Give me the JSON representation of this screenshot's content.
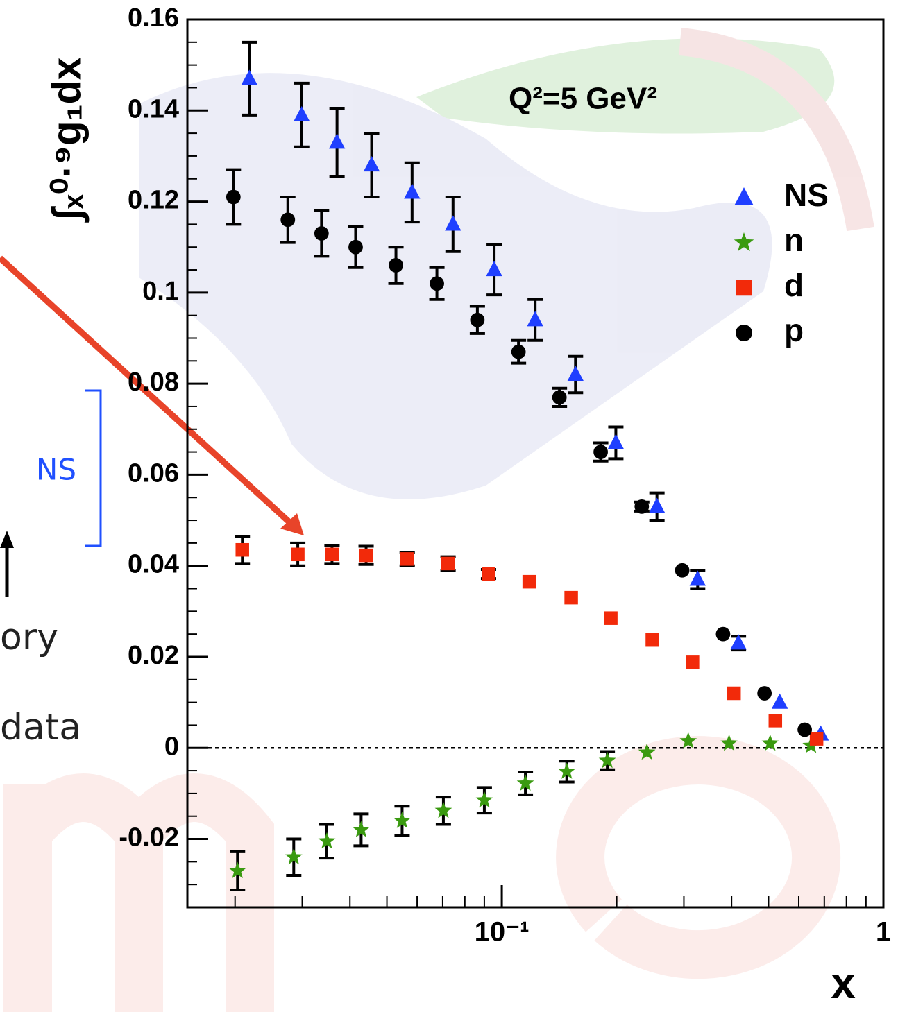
{
  "chart_data": {
    "type": "scatter",
    "annotation": "Q²=5 GeV²",
    "x_label": "x",
    "y_label": "∫ₓ⁰·⁹g₁dx",
    "side_texts": [
      "NS",
      "ory",
      "data"
    ],
    "log_x": true,
    "xlim": [
      0.015,
      1
    ],
    "xticks": [
      {
        "value": 0.1,
        "label": "10⁻¹"
      },
      1
    ],
    "ylim": [
      -0.035,
      0.16
    ],
    "yticks": [
      0.16,
      0.14,
      0.12,
      0.1,
      0.08,
      0.06,
      0.04,
      0.02,
      0,
      -0.02
    ],
    "legend": "top-right",
    "series": [
      {
        "name": "NS",
        "color": "#1f3fff",
        "marker": "triangle",
        "x": [
          0.0218,
          0.0299,
          0.037,
          0.0456,
          0.0582,
          0.0745,
          0.0955,
          0.1223,
          0.156,
          0.199,
          0.255,
          0.326,
          0.417,
          0.535,
          0.685
        ],
        "values": [
          0.147,
          0.139,
          0.133,
          0.128,
          0.122,
          0.115,
          0.105,
          0.094,
          0.082,
          0.067,
          0.053,
          0.037,
          0.023,
          0.01,
          0.003
        ],
        "errors": [
          0.008,
          0.007,
          0.0075,
          0.007,
          0.0065,
          0.006,
          0.0055,
          0.0045,
          0.004,
          0.0035,
          0.003,
          0.002,
          0.0015,
          null,
          null
        ]
      },
      {
        "name": "n",
        "color": "#3a9a10",
        "marker": "star",
        "x": [
          0.0203,
          0.0285,
          0.0348,
          0.0428,
          0.0548,
          0.0703,
          0.09,
          0.1153,
          0.148,
          0.189,
          0.24,
          0.308,
          0.394,
          0.505,
          0.646
        ],
        "values": [
          -0.027,
          -0.024,
          -0.0205,
          -0.018,
          -0.016,
          -0.0138,
          -0.0115,
          -0.0078,
          -0.0052,
          -0.0028,
          -0.001,
          0.0015,
          0.001,
          0.001,
          0.0005
        ],
        "errors": [
          0.0042,
          0.004,
          0.0037,
          0.0035,
          0.0032,
          0.003,
          0.0028,
          0.0025,
          0.0023,
          0.002,
          null,
          null,
          null,
          null,
          null
        ]
      },
      {
        "name": "d",
        "color": "#f22a0a",
        "marker": "square",
        "x": [
          0.0209,
          0.0292,
          0.0359,
          0.0441,
          0.0565,
          0.0723,
          0.0923,
          0.118,
          0.152,
          0.193,
          0.248,
          0.316,
          0.406,
          0.521,
          0.668
        ],
        "values": [
          0.0435,
          0.0425,
          0.0425,
          0.0423,
          0.0415,
          0.0405,
          0.0382,
          0.0365,
          0.033,
          0.0285,
          0.0237,
          0.0188,
          0.012,
          0.006,
          0.002
        ],
        "errors": [
          0.003,
          0.0025,
          0.002,
          0.002,
          0.0015,
          0.0015,
          0.001,
          null,
          null,
          null,
          null,
          null,
          null,
          null,
          null
        ]
      },
      {
        "name": "p",
        "color": "#000000",
        "marker": "circle",
        "x": [
          0.0198,
          0.0275,
          0.0337,
          0.0414,
          0.0528,
          0.0676,
          0.0863,
          0.1106,
          0.1416,
          0.1816,
          0.2327,
          0.297,
          0.38,
          0.488,
          0.622
        ],
        "values": [
          0.121,
          0.116,
          0.113,
          0.11,
          0.106,
          0.102,
          0.094,
          0.087,
          0.077,
          0.065,
          0.053,
          0.039,
          0.025,
          0.012,
          0.004
        ],
        "errors": [
          0.006,
          0.005,
          0.005,
          0.0045,
          0.004,
          0.0035,
          0.003,
          0.0025,
          0.002,
          0.002,
          0.001,
          null,
          null,
          null,
          null
        ]
      }
    ]
  }
}
